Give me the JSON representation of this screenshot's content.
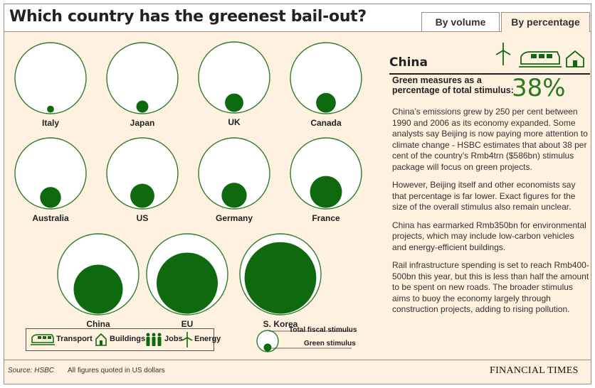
{
  "header": {
    "title": "Which country has the greenest bail-out?",
    "tabs": [
      {
        "label": "By volume",
        "active": false
      },
      {
        "label": "By percentage",
        "active": true
      }
    ]
  },
  "colors": {
    "green": "#0f6a0f",
    "ring": "#2f7d2f",
    "background": "#fff1e0",
    "accent_text": "#2a7a1f"
  },
  "chart_data": {
    "type": "bubble",
    "measure": "green stimulus as a percentage of total fiscal stimulus",
    "series": [
      {
        "name": "Total fiscal stimulus"
      },
      {
        "name": "Green stimulus"
      }
    ],
    "countries": [
      {
        "name": "Italy",
        "green_share_pct": 1
      },
      {
        "name": "Japan",
        "green_share_pct": 3
      },
      {
        "name": "UK",
        "green_share_pct": 7
      },
      {
        "name": "Canada",
        "green_share_pct": 8
      },
      {
        "name": "Australia",
        "green_share_pct": 9
      },
      {
        "name": "US",
        "green_share_pct": 12
      },
      {
        "name": "Germany",
        "green_share_pct": 13
      },
      {
        "name": "France",
        "green_share_pct": 21
      },
      {
        "name": "China",
        "green_share_pct": 38
      },
      {
        "name": "EU",
        "green_share_pct": 59
      },
      {
        "name": "S. Korea",
        "green_share_pct": 81
      }
    ]
  },
  "legend": {
    "categories": [
      {
        "label": "Transport",
        "icon": "train-icon"
      },
      {
        "label": "Buildings",
        "icon": "house-icon"
      },
      {
        "label": "Jobs",
        "icon": "workers-icon"
      },
      {
        "label": "Energy",
        "icon": "wind-turbine-icon"
      }
    ],
    "total_label": "Total fiscal stimulus",
    "green_label": "Green stimulus"
  },
  "detail": {
    "country": "China",
    "icons": [
      "wind-turbine-icon",
      "train-icon",
      "house-icon"
    ],
    "measure_label": "Green measures as a percentage of total stimulus:",
    "percentage": "38%",
    "paragraphs": [
      "China’s emissions grew by 250 per cent between 1990 and 2006 as its economy expanded. Some analysts say Beijing is now paying more attention to climate change - HSBC estimates that about 38 per cent of the country’s Rmb4trn ($586bn) stimulus package will focus on green projects.",
      "However, Beijing itself and other economists say that percentage is far lower. Exact figures for the size of the overall stimulus also remain unclear.",
      "China has earmarked Rmb350bn for environmental projects, which may include low-carbon vehicles and energy-efficient buildings.",
      "Rail infrastructure spending is set to reach Rmb400-500bn this year, but this is less than half the amount to be spent on new roads. The broader stimulus aims to buoy the economy largely through construction projects, adding to rising pollution."
    ]
  },
  "footer": {
    "source": "Source: HSBC",
    "note": "All figures quoted in US dollars",
    "brand": "FINANCIAL TIMES"
  }
}
